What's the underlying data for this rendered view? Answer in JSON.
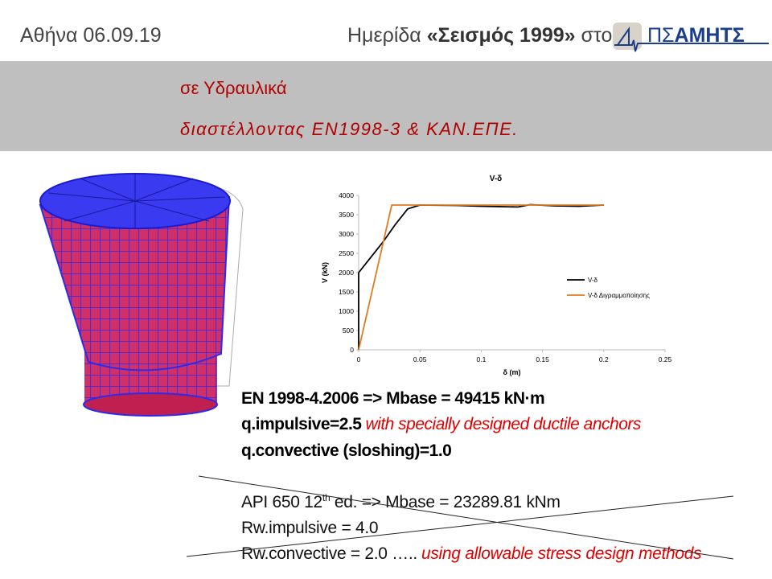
{
  "header": {
    "date": "Αθήνα 06.09.19",
    "event_prefix": "Ημερίδα",
    "event_name": "«Σεισμός 1999»",
    "event_suffix": "στο",
    "logo_light": "ΠΣ",
    "logo_bold": "ΑΜΗΤΣ"
  },
  "banner": {
    "line1": "σε Υδραυλικά",
    "line2": "διαστέλλοντας EN1998-3 & ΚΑΝ.ΕΠΕ."
  },
  "chart_data": {
    "type": "line",
    "title": "V-δ",
    "x_label": "δ (m)",
    "y_label": "V (kN)",
    "xlim": [
      0,
      0.25
    ],
    "xticks": [
      0,
      0.05,
      0.1,
      0.15,
      0.2,
      0.25
    ],
    "ylim": [
      0,
      4000
    ],
    "yticks": [
      0,
      500,
      1000,
      1500,
      2000,
      2500,
      3000,
      3500,
      4000
    ],
    "legend": "right",
    "series": [
      {
        "name": "V-δ",
        "color": "#000000",
        "x": [
          0,
          0,
          0.01,
          0.02,
          0.03,
          0.04,
          0.05,
          0.08,
          0.1,
          0.13,
          0.14,
          0.16,
          0.18,
          0.2
        ],
        "values": [
          0,
          2000,
          2400,
          2800,
          3250,
          3650,
          3750,
          3740,
          3720,
          3700,
          3760,
          3730,
          3720,
          3750
        ]
      },
      {
        "name": "V-δ Διγραμμοποίησης",
        "color": "#e07b20",
        "x": [
          0,
          0.027,
          0.2
        ],
        "values": [
          0,
          3750,
          3750
        ]
      }
    ]
  },
  "notes": {
    "line1": "EN 1998-4.2006 => Mbase = 49415 kN·m",
    "line2_main": "q.impulsive=2.5",
    "line2_note": "with specially designed ductile anchors",
    "line3": "q.convective (sloshing)=1.0"
  },
  "crossed": {
    "line1_pre": "API 650 12",
    "line1_sup": "th",
    "line1_post": "ed. => Mbase = 23289.81 kNm",
    "line2": "Rw.impulsive = 4.0",
    "line3_main": "Rw.convective = 2.0 …..",
    "line3_note": "using allowable stress design methods"
  }
}
